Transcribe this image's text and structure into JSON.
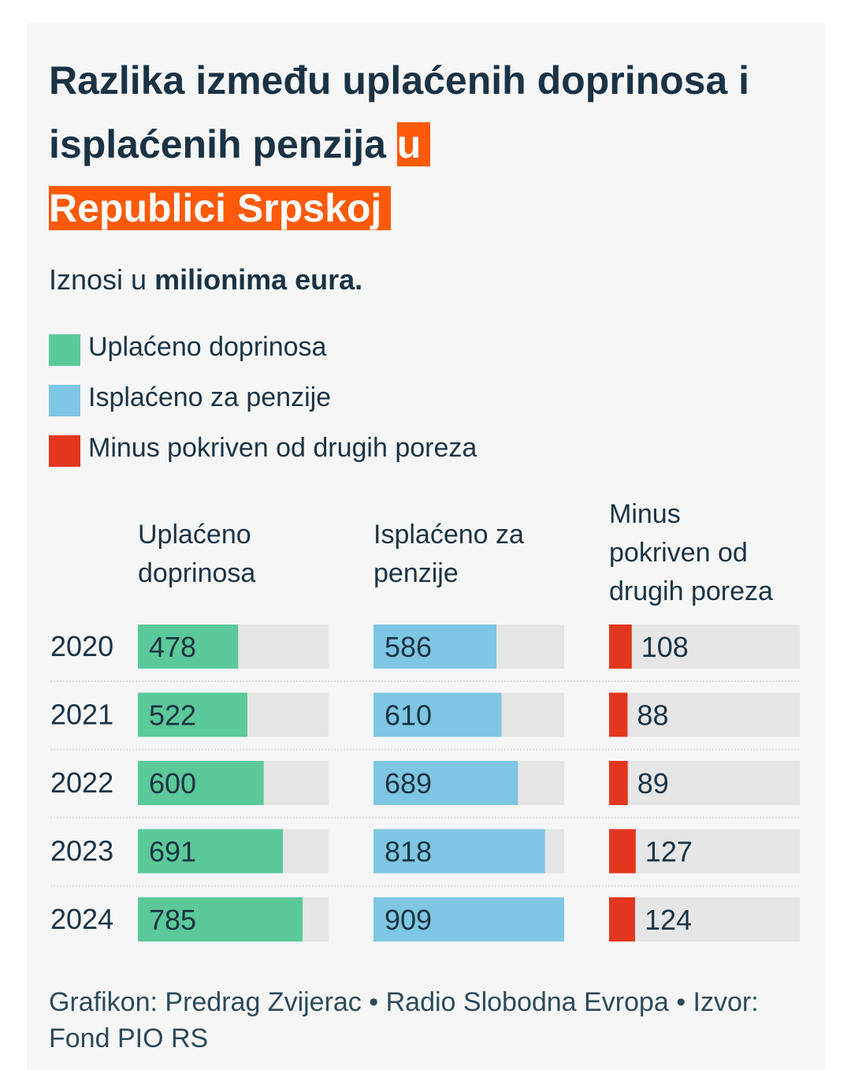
{
  "title": {
    "part1": "Razlika između uplaćenih doprinosa i isplaćenih penzija ",
    "highlight1": "u",
    "highlight2": "Republici Srpskoj"
  },
  "subtitle": {
    "prefix": "Iznosi u ",
    "bold": "milionima eura."
  },
  "colors": {
    "green": "#5bc99a",
    "blue": "#7ec6e3",
    "red": "#e3361e",
    "track": "#e6e6e6",
    "highlight": "#ff5a0a"
  },
  "legend": [
    {
      "label": "Uplaćeno doprinosa",
      "color": "#5bc99a"
    },
    {
      "label": "Isplaćeno za penzije",
      "color": "#7ec6e3"
    },
    {
      "label": "Minus pokriven od drugih poreza",
      "color": "#e3361e"
    }
  ],
  "chart_data": {
    "type": "bar",
    "orientation": "horizontal",
    "unit": "milioni eura",
    "categories": [
      "2020",
      "2021",
      "2022",
      "2023",
      "2024"
    ],
    "series": [
      {
        "name": "Uplaćeno doprinosa",
        "header_lines": [
          "Uplaćeno",
          "doprinosa"
        ],
        "values": [
          478,
          522,
          600,
          691,
          785
        ],
        "max": 909,
        "color": "#5bc99a"
      },
      {
        "name": "Isplaćeno za penzije",
        "header_lines": [
          "Isplaćeno za",
          "penzije"
        ],
        "values": [
          586,
          610,
          689,
          818,
          909
        ],
        "max": 909,
        "color": "#7ec6e3"
      },
      {
        "name": "Minus pokriven od drugih poreza",
        "header_lines": [
          "Minus",
          "pokriven od",
          "drugih poreza"
        ],
        "values": [
          108,
          88,
          89,
          127,
          124
        ],
        "max": 909,
        "color": "#e3361e"
      }
    ]
  },
  "footer": "Grafikon: Predrag Zvijerac • Radio Slobodna Evropa • Izvor: Fond PIO RS"
}
